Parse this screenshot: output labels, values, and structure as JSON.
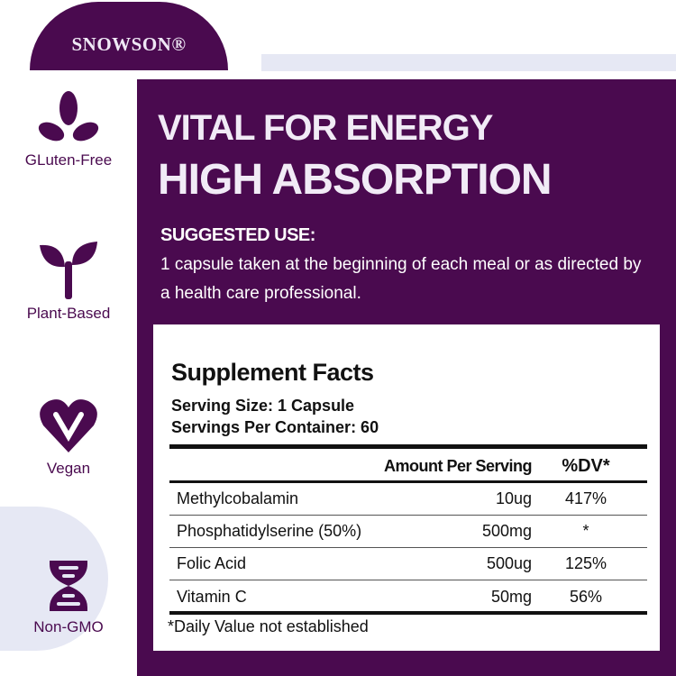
{
  "brand": {
    "name": "SNOWSON®"
  },
  "colors": {
    "primary": "#4a0a4f",
    "accent_light": "#e6e8f4"
  },
  "features": [
    {
      "label": "GLuten-Free",
      "icon": "leaves-icon"
    },
    {
      "label": "Plant-Based",
      "icon": "sprout-icon"
    },
    {
      "label": "Vegan",
      "icon": "heart-v-icon"
    },
    {
      "label": "Non-GMO",
      "icon": "dna-icon"
    }
  ],
  "headline": {
    "line1": "VITAL FOR ENERGY",
    "line2": "HIGH ABSORPTION"
  },
  "suggested_use": {
    "title": "SUGGESTED USE:",
    "text": "1 capsule taken at the beginning of each meal or as directed by a health care professional."
  },
  "facts": {
    "title": "Supplement Facts",
    "serving_size": "Serving Size:  1 Capsule",
    "servings_per_container": "Servings Per Container: 60",
    "headers": {
      "amount": "Amount Per Serving",
      "dv": "%DV*"
    },
    "rows": [
      {
        "name": "Methylcobalamin",
        "amount": "10ug",
        "dv": "417%"
      },
      {
        "name": "Phosphatidylserine (50%)",
        "amount": "500mg",
        "dv": "*"
      },
      {
        "name": "Folic Acid",
        "amount": "500ug",
        "dv": "125%"
      },
      {
        "name": "Vitamin C",
        "amount": "50mg",
        "dv": "56%"
      }
    ],
    "footnote": "*Daily Value not established"
  }
}
